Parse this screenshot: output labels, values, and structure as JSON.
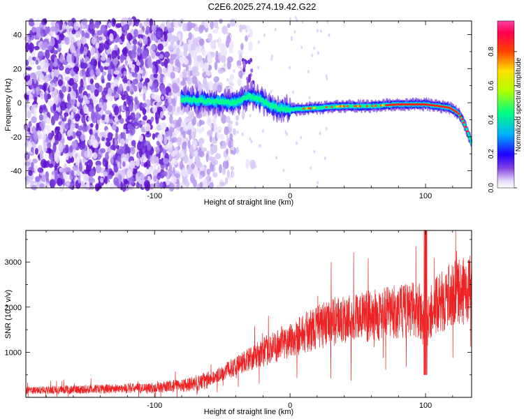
{
  "title": "C2E6.2025.274.19.42.G22",
  "colors": {
    "snr_line": "#ee2222",
    "cmap": [
      "#ffffff",
      "#c8b0f0",
      "#8040e0",
      "#3010ff",
      "#00c8ff",
      "#00ff80",
      "#a0ff00",
      "#ffe000",
      "#ff4000",
      "#ff0060",
      "#ff60c0"
    ]
  },
  "chart_data": [
    {
      "type": "heatmap",
      "xlabel": "Height of straight line (km)",
      "ylabel": "Frequency (Hz)",
      "xlim": [
        -195,
        134
      ],
      "ylim": [
        -50,
        48
      ],
      "xticks": [
        -100,
        0,
        100
      ],
      "yticks": [
        -40,
        -20,
        0,
        20,
        40
      ],
      "colorbar": {
        "label": "Normalized spectral amplitude",
        "range": [
          0,
          0.98
        ],
        "ticks": [
          "0.0",
          "0.2",
          "0.4",
          "0.6",
          "0.8"
        ]
      },
      "signal_track": {
        "description_points_x": [
          -80,
          -60,
          -40,
          -30,
          -20,
          -10,
          0,
          20,
          40,
          60,
          80,
          100,
          110,
          118,
          124,
          128,
          131,
          134
        ],
        "freq_hz": [
          2,
          1,
          0,
          4,
          1,
          -3,
          -4,
          -3,
          -2,
          -2,
          -1,
          -1,
          -2,
          -3,
          -6,
          -11,
          -17,
          -24
        ]
      },
      "noise_region_x": [
        -195,
        -55
      ]
    },
    {
      "type": "line",
      "xlabel": "Height of straight line (km)",
      "ylabel": "SNR (10 * v/v)",
      "xlim": [
        -195,
        134
      ],
      "ylim": [
        0,
        3700
      ],
      "xticks": [
        -100,
        0,
        100
      ],
      "yticks": [
        1000,
        2000,
        3000
      ],
      "series": [
        {
          "x": [
            -195,
            -150,
            -100,
            -75,
            -60,
            -40,
            -20,
            0,
            20,
            40,
            60,
            80,
            95,
            100,
            105,
            120,
            134
          ],
          "y": [
            150,
            180,
            210,
            280,
            380,
            700,
            1000,
            1280,
            1550,
            1750,
            1800,
            1900,
            1950,
            1500,
            1950,
            2300,
            2400
          ]
        }
      ]
    }
  ]
}
